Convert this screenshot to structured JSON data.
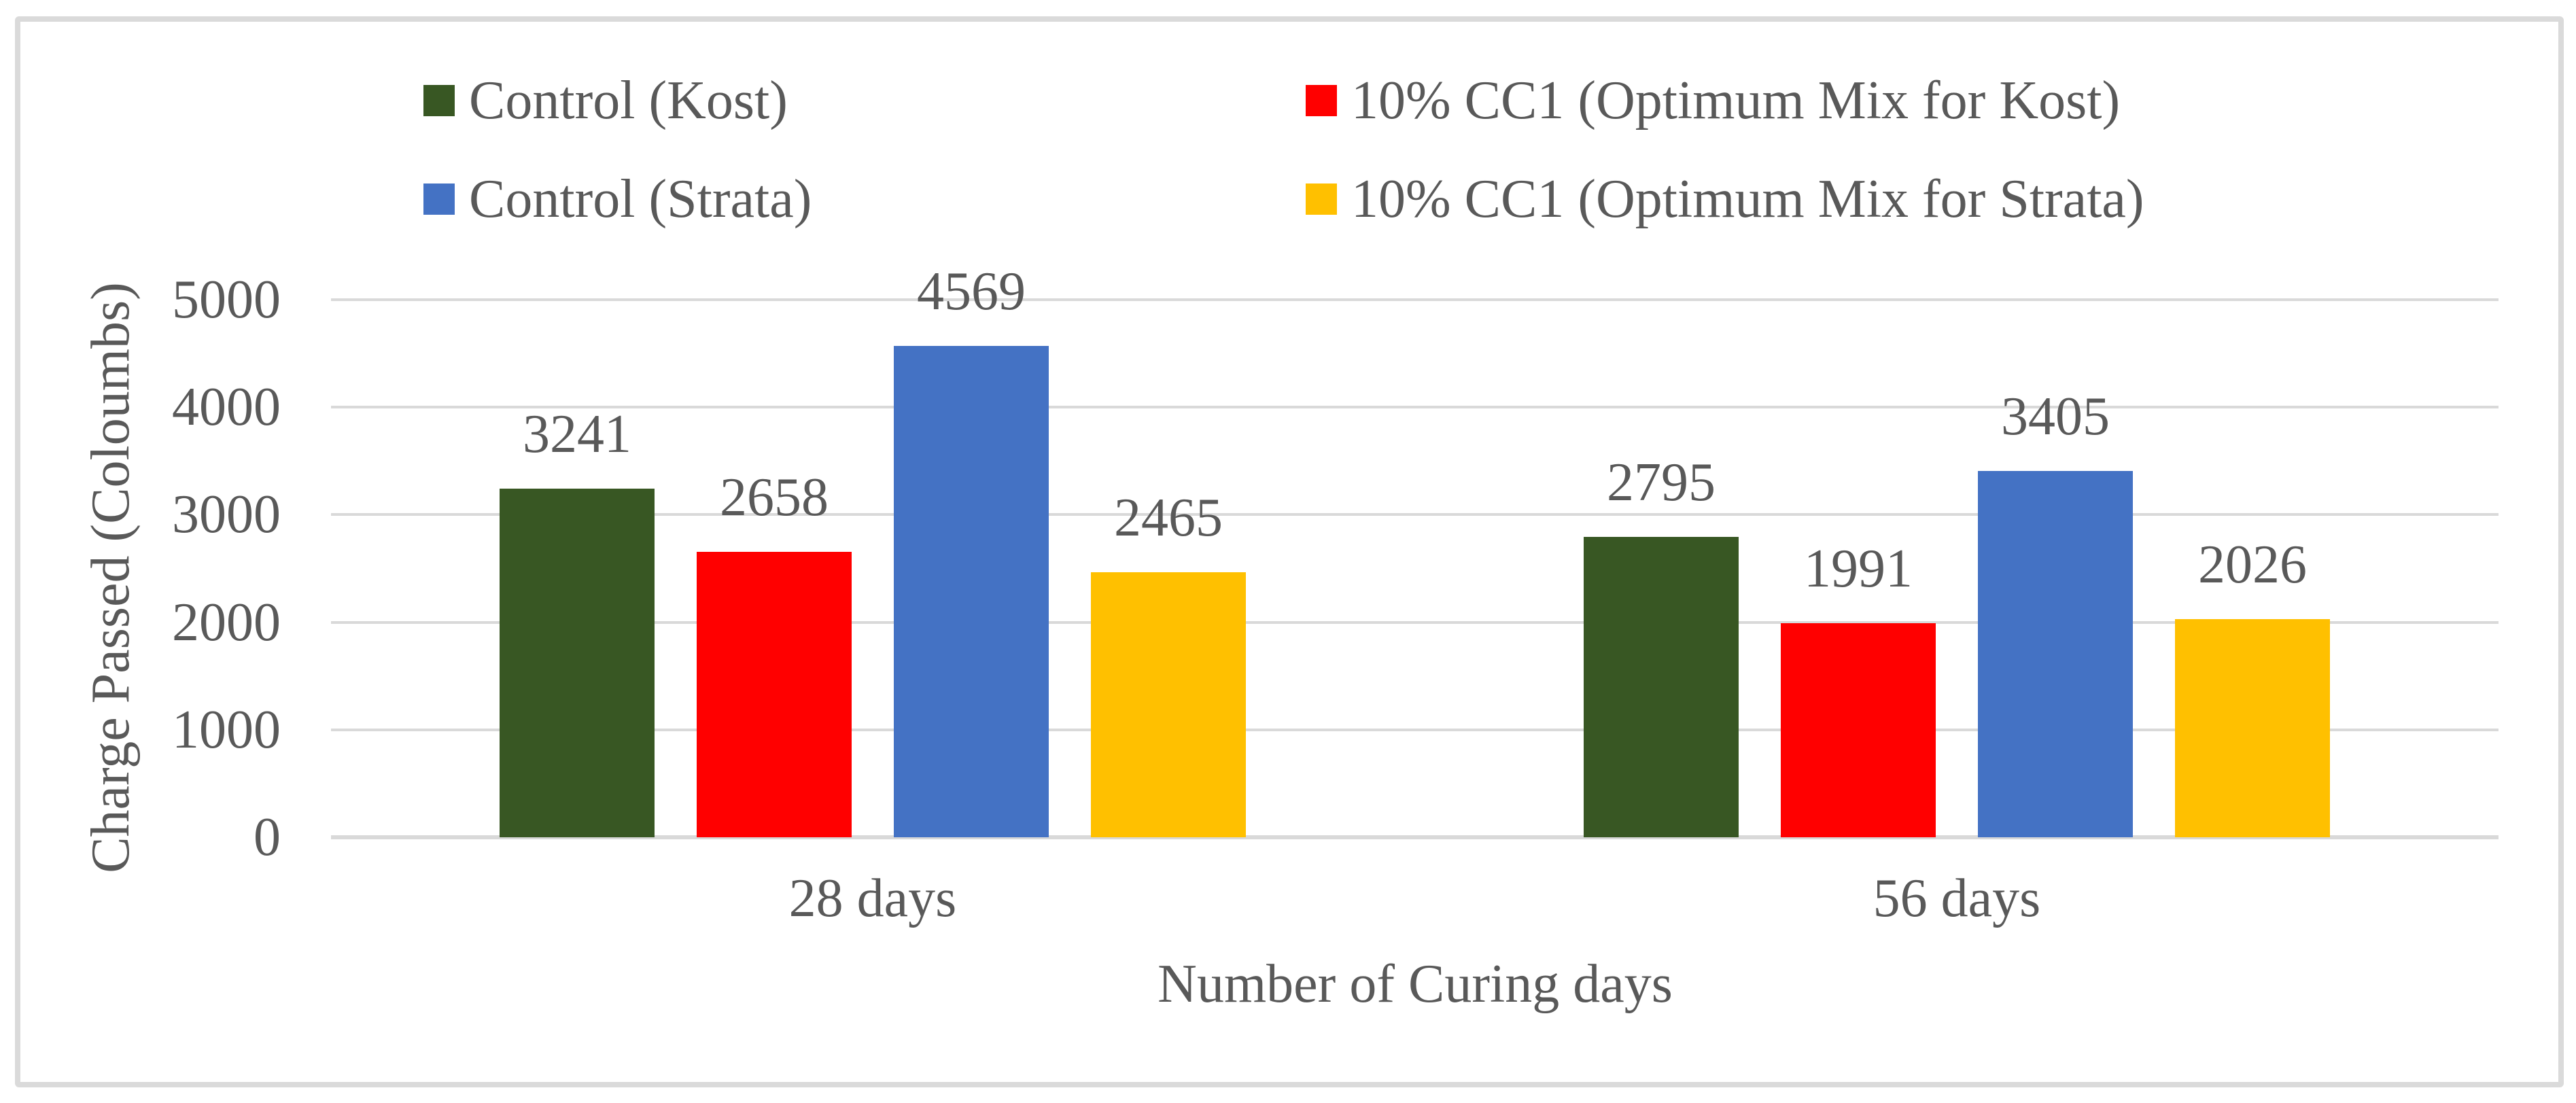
{
  "figure": {
    "background": "#FFFFFF",
    "border_color": "#DADADA"
  },
  "chart_data": {
    "type": "bar",
    "title": "",
    "categories": [
      "28 days",
      "56 days"
    ],
    "series": [
      {
        "name": "Control (Kost)",
        "color": "#385723",
        "values": [
          3241,
          2795
        ]
      },
      {
        "name": "10% CC1 (Optimum Mix for Kost)",
        "color": "#FF0000",
        "values": [
          2658,
          1991
        ]
      },
      {
        "name": "Control (Strata)",
        "color": "#4472C4",
        "values": [
          4569,
          3405
        ]
      },
      {
        "name": "10% CC1 (Optimum Mix for Strata)",
        "color": "#FFC000",
        "values": [
          2465,
          2026
        ]
      }
    ],
    "xlabel": "Number of Curing days",
    "ylabel": "Charge Passed (Coloumbs)",
    "ylim": [
      0,
      5000
    ],
    "yticks": [
      0,
      1000,
      2000,
      3000,
      4000,
      5000
    ],
    "grid": true,
    "gridline_color": "#D9D9D9",
    "text_color": "#595959",
    "legend_position": "top",
    "data_labels_shown": true
  }
}
